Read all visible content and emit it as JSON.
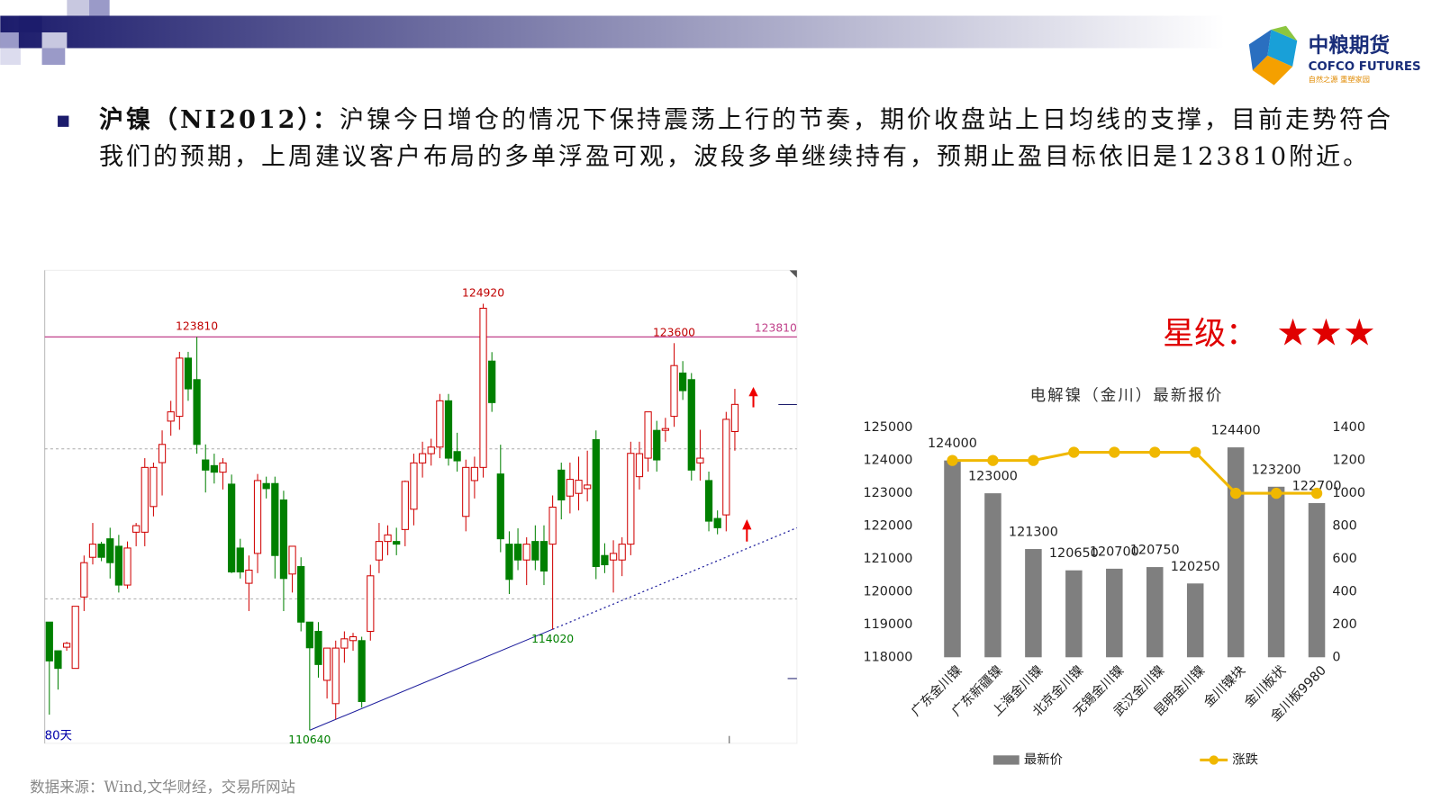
{
  "logo": {
    "name": "中粮期货",
    "english": "COFCO FUTURES",
    "slogan": "自然之源 重塑家园"
  },
  "paragraph": {
    "lead": "沪镍（NI2012）：",
    "text": "沪镍今日增仓的情况下保持震荡上行的节奏，期价收盘站上日均线的支撑，目前走势符合我们的预期，上周建议客户布局的多单浮盈可观，波段多单继续持有，预期止盈目标依旧是123810附近。"
  },
  "rating": {
    "label": "星级：",
    "stars": "★★★"
  },
  "source": "数据来源：Wind,文华财经，交易所网站",
  "chart_data": [
    {
      "type": "candlestick",
      "period_label": "80天",
      "ylim": [
        110200,
        126040
      ],
      "gridlines": [
        120060,
        115040
      ],
      "reference_line": 123810,
      "reference_color": "#c0408a",
      "up_color": "#d00000",
      "down_color": "#008000",
      "high_labels": [
        123810,
        124920,
        123600
      ],
      "low_labels": [
        114020,
        110640
      ],
      "open": [
        114260,
        113300,
        113420,
        112710,
        115100,
        116430,
        116870,
        117050,
        116800,
        115500,
        117270,
        117270,
        118130,
        119600,
        120990,
        121150,
        123100,
        122380,
        119690,
        119500,
        119280,
        118880,
        116740,
        115560,
        116560,
        118900,
        118900,
        118350,
        115870,
        116120,
        114260,
        113950,
        112310,
        111530,
        113390,
        113640,
        113640,
        113950,
        116340,
        116960,
        116960,
        117360,
        118040,
        119590,
        119900,
        120120,
        121670,
        119970,
        117800,
        119000,
        119440,
        123000,
        119220,
        116870,
        116870,
        116340,
        116960,
        116960,
        116870,
        119350,
        118480,
        118570,
        118730,
        120370,
        116490,
        116340,
        116340,
        116870,
        119130,
        119750,
        120680,
        120680,
        121150,
        122600,
        122380,
        119590,
        119000,
        117730,
        117850,
        120640
      ],
      "high": [
        114260,
        113300,
        113600,
        114790,
        116490,
        117580,
        116950,
        117420,
        117180,
        116960,
        117580,
        119750,
        119600,
        120680,
        121670,
        123310,
        123310,
        123810,
        120210,
        119900,
        119750,
        119200,
        117050,
        116490,
        119220,
        119130,
        119130,
        118660,
        116800,
        116430,
        114260,
        114260,
        113400,
        113640,
        113950,
        113900,
        113770,
        116180,
        117580,
        117500,
        117420,
        119000,
        119900,
        120300,
        120400,
        121900,
        121900,
        120600,
        119700,
        119800,
        124920,
        123300,
        120200,
        117300,
        117400,
        117100,
        117500,
        117500,
        118500,
        119600,
        119600,
        119800,
        120000,
        120680,
        116900,
        117000,
        117100,
        120300,
        120300,
        121300,
        121000,
        121100,
        123600,
        123000,
        122600,
        120700,
        119300,
        118000,
        121300,
        122070
      ],
      "low": [
        111160,
        112000,
        113300,
        112710,
        114630,
        116190,
        116300,
        115720,
        115250,
        115380,
        116800,
        116800,
        117800,
        118500,
        120500,
        120700,
        121670,
        119900,
        118600,
        118900,
        118700,
        115900,
        115720,
        114630,
        115900,
        118400,
        115720,
        114630,
        115250,
        113950,
        110640,
        112400,
        111700,
        111000,
        112900,
        113300,
        111400,
        113640,
        115900,
        116500,
        116500,
        116800,
        117500,
        119100,
        119500,
        119750,
        119500,
        119300,
        117300,
        118400,
        119100,
        121300,
        116600,
        115200,
        116000,
        115500,
        116000,
        115500,
        114020,
        117700,
        117900,
        118000,
        118300,
        115700,
        115900,
        115250,
        115800,
        116500,
        118700,
        119300,
        119300,
        120300,
        120800,
        121700,
        119000,
        119000,
        117300,
        117200,
        117300,
        120000
      ],
      "close": [
        112960,
        112710,
        113550,
        114790,
        116250,
        116870,
        116430,
        116250,
        115500,
        116740,
        117490,
        119440,
        119440,
        120210,
        121300,
        123100,
        122070,
        120210,
        119350,
        119280,
        119590,
        115940,
        115940,
        116000,
        119000,
        118730,
        116490,
        115720,
        116800,
        114260,
        113400,
        112840,
        113390,
        113390,
        113700,
        113770,
        111600,
        115810,
        116960,
        117180,
        116870,
        118970,
        119590,
        119900,
        120120,
        121670,
        119750,
        119660,
        119440,
        119440,
        124770,
        121610,
        117050,
        115690,
        116340,
        116870,
        116340,
        115970,
        118110,
        118350,
        119040,
        119010,
        118850,
        116120,
        116180,
        116560,
        116870,
        119910,
        119900,
        121300,
        119690,
        120740,
        122850,
        122010,
        119350,
        119750,
        117640,
        117420,
        121050,
        121550
      ]
    },
    {
      "type": "combo",
      "title": "电解镍（金川）最新报价",
      "categories": [
        "广东金川镍",
        "广东新疆镍",
        "上海金川镍",
        "北京金川镍",
        "无锡金川镍",
        "武汉金川镍",
        "昆明金川镍",
        "金川镍块",
        "金川板状",
        "金川板9980"
      ],
      "ylim": [
        118000,
        125000
      ],
      "yticks": [
        118000,
        119000,
        120000,
        121000,
        122000,
        123000,
        124000,
        125000
      ],
      "y2lim": [
        0,
        1400
      ],
      "y2ticks": [
        0,
        200,
        400,
        600,
        800,
        1000,
        1200,
        1400
      ],
      "series": [
        {
          "name": "最新价",
          "type": "bar",
          "color": "#7f7f7f",
          "values": [
            124000,
            123000,
            121300,
            120650,
            120700,
            120750,
            120250,
            124400,
            123200,
            122700
          ]
        },
        {
          "name": "涨跌",
          "type": "line",
          "axis": "y2",
          "color": "#f0b800",
          "values": [
            1200,
            1200,
            1200,
            1250,
            1250,
            1250,
            1250,
            1000,
            1000,
            1000
          ]
        }
      ]
    }
  ]
}
